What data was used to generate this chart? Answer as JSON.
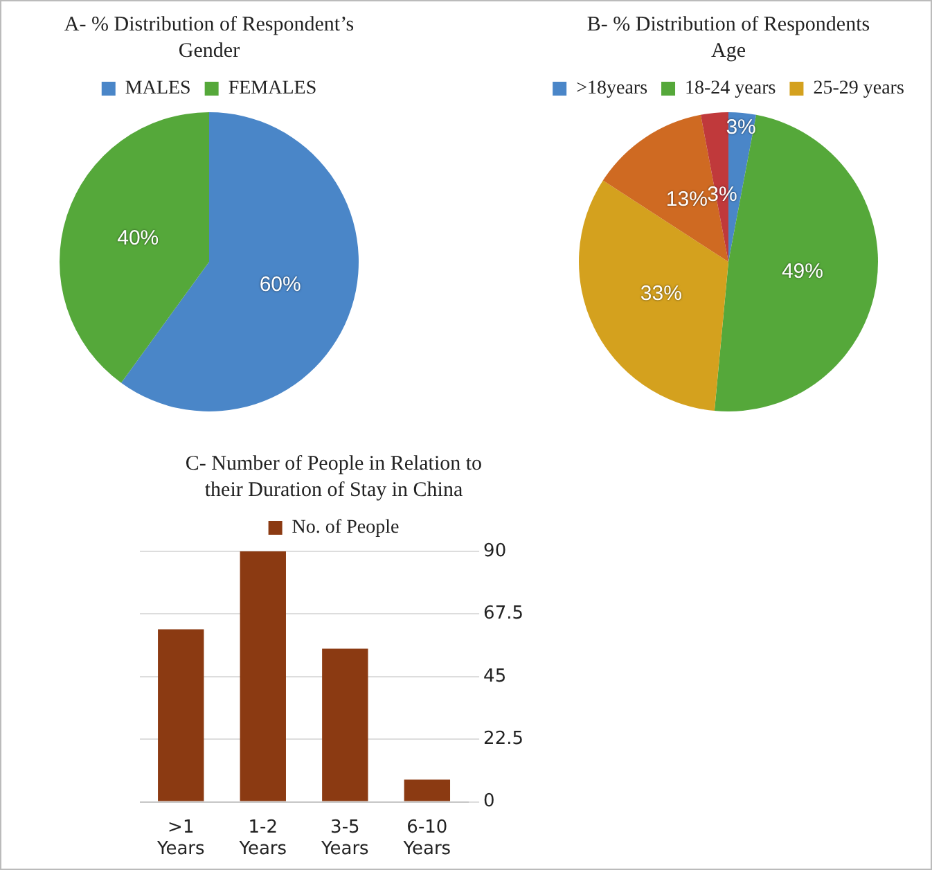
{
  "chart_data": [
    {
      "type": "pie",
      "title": "A- % Distribution of Respondent’s Gender",
      "categories": [
        "MALES",
        "FEMALES"
      ],
      "values": [
        60,
        40
      ],
      "colors": [
        "#4a86c8",
        "#55a83a"
      ],
      "value_labels": [
        "60%",
        "40%"
      ],
      "legend": "top"
    },
    {
      "type": "pie",
      "title": "B- % Distribution of Respondents Age",
      "categories": [
        ">18years",
        "18-24 years",
        "25-29 years",
        null,
        null
      ],
      "values": [
        3,
        49,
        33,
        13,
        3
      ],
      "colors": [
        "#4a86c8",
        "#55a83a",
        "#d4a11e",
        "#cf6a22",
        "#c0393b"
      ],
      "value_labels": [
        "3%",
        "49%",
        "33%",
        "13%",
        "3%"
      ],
      "legend": "top"
    },
    {
      "type": "bar",
      "title": "C- Number of People in Relation to their Duration of Stay in China",
      "categories": [
        ">1 Years",
        "1-2 Years",
        "3-5 Years",
        "6-10 Years"
      ],
      "series": [
        {
          "name": "No. of People",
          "color": "#8b3a12",
          "values": [
            62,
            90,
            55,
            8
          ]
        }
      ],
      "ylim": [
        0,
        90
      ],
      "yticks": [
        0,
        22.5,
        45,
        67.5,
        90
      ],
      "grid": "y",
      "legend": "top"
    }
  ]
}
